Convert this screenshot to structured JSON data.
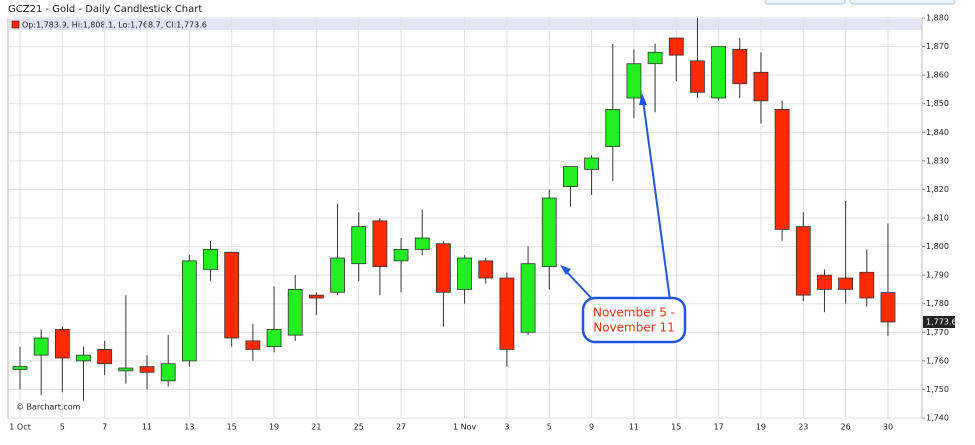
{
  "chart_data": {
    "type": "candlestick",
    "title": "GCZ21 - Gold - Daily Candlestick Chart",
    "header": "Op:1,783.9, Hi:1,808.1, Lo:1,768.7, Cl:1,773.6",
    "source": "© Barchart.com",
    "annotation": [
      "November 5 -",
      "November 11"
    ],
    "last_price_label": "1,773.6",
    "categories": [
      "1 Oct",
      null,
      "5",
      null,
      "7",
      null,
      "11",
      null,
      "13",
      null,
      "15",
      null,
      "19",
      null,
      "21",
      null,
      "25",
      null,
      "27",
      null,
      null,
      "1 Nov",
      null,
      "3",
      null,
      "5",
      null,
      "9",
      null,
      "11",
      null,
      "15",
      null,
      "17",
      null,
      "19",
      null,
      "23",
      null,
      "26",
      null,
      "30"
    ],
    "open": [
      1757,
      1762,
      1771,
      1760,
      1764,
      1756.5,
      1758,
      1753,
      1760,
      1792,
      1798,
      1767,
      1765,
      1769,
      1783,
      1784,
      1794,
      1809,
      1795,
      1799,
      1801,
      1785,
      1795,
      1789,
      1770,
      1793,
      1821,
      1827,
      1835,
      1852,
      1864,
      1873,
      1865,
      1852,
      1869,
      1861,
      1848,
      1807,
      1790,
      1789,
      1791,
      1783.9
    ],
    "high": [
      1765,
      1771,
      1772,
      1765,
      1767,
      1783,
      1762,
      1769,
      1797,
      1802,
      1798,
      1773,
      1786,
      1790,
      1784,
      1815,
      1812,
      1810,
      1803,
      1813,
      1802,
      1797,
      1796,
      1791,
      1800,
      1820,
      1828,
      1832,
      1871,
      1869,
      1871,
      1873,
      1880,
      1870,
      1873,
      1868,
      1851,
      1812,
      1792,
      1816,
      1799,
      1808.1
    ],
    "low": [
      1750,
      1748,
      1749,
      1746,
      1755,
      1752,
      1750,
      1751,
      1758,
      1788,
      1765,
      1760,
      1763,
      1767,
      1776,
      1783,
      1788,
      1783,
      1784,
      1797,
      1772,
      1780,
      1787,
      1758,
      1769,
      1785,
      1814,
      1818,
      1823,
      1845,
      1847,
      1858,
      1852,
      1851,
      1852,
      1843,
      1802,
      1781,
      1777,
      1780,
      1779,
      1768.7
    ],
    "close": [
      1758,
      1768,
      1761,
      1762,
      1759,
      1757.5,
      1756,
      1759,
      1795,
      1799,
      1768,
      1764,
      1771,
      1785,
      1782,
      1796,
      1807,
      1793,
      1799,
      1803,
      1784,
      1796,
      1789,
      1764,
      1794,
      1817,
      1828,
      1831,
      1848,
      1864,
      1868,
      1867,
      1854,
      1870,
      1857,
      1851,
      1806,
      1783,
      1785,
      1785,
      1782,
      1773.6
    ],
    "up_color": "#22ee22",
    "down_color": "#ff2a00",
    "ylim": [
      1740,
      1880
    ],
    "yticks": [
      {
        "value": 1740,
        "label": "1,740"
      },
      {
        "value": 1750,
        "label": "1,750"
      },
      {
        "value": 1760,
        "label": "1,760"
      },
      {
        "value": 1770,
        "label": "1,770"
      },
      {
        "value": 1780,
        "label": "1,780"
      },
      {
        "value": 1790,
        "label": "1,790"
      },
      {
        "value": 1800,
        "label": "1,800"
      },
      {
        "value": 1810,
        "label": "1,810"
      },
      {
        "value": 1820,
        "label": "1,820"
      },
      {
        "value": 1830,
        "label": "1,830"
      },
      {
        "value": 1840,
        "label": "1,840"
      },
      {
        "value": 1850,
        "label": "1,850"
      },
      {
        "value": 1860,
        "label": "1,860"
      },
      {
        "value": 1870,
        "label": "1,870"
      },
      {
        "value": 1880,
        "label": "1,880"
      }
    ],
    "grid": true
  }
}
